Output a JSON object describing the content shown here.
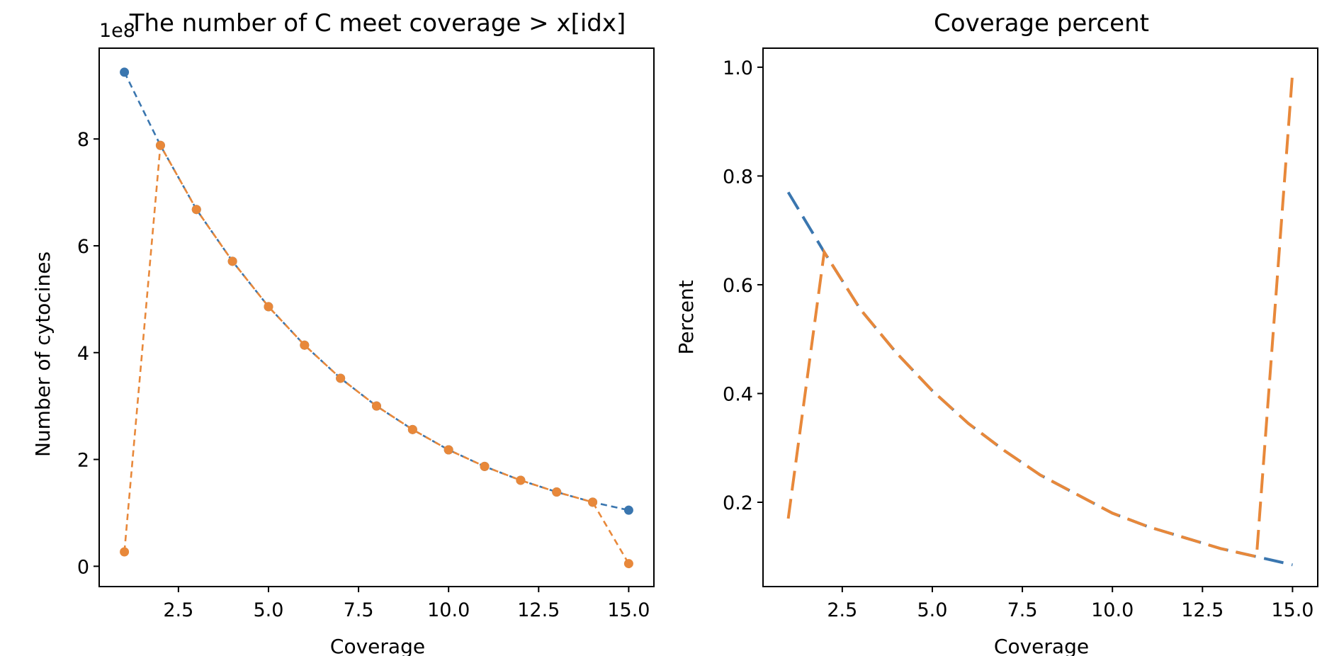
{
  "chart_data": [
    {
      "type": "line",
      "title": "The number of C meet coverage > x[idx]",
      "xlabel": "Coverage",
      "ylabel": "Number of cytocines",
      "offset_text": "1e8",
      "xlim": [
        0.3,
        15.7
      ],
      "ylim": [
        -0.38,
        9.7
      ],
      "xticks": [
        2.5,
        5.0,
        7.5,
        10.0,
        12.5,
        15.0
      ],
      "xtick_labels": [
        "2.5",
        "5.0",
        "7.5",
        "10.0",
        "12.5",
        "15.0"
      ],
      "yticks": [
        0,
        2,
        4,
        6,
        8
      ],
      "ytick_labels": [
        "0",
        "2",
        "4",
        "6",
        "8"
      ],
      "x": [
        1,
        2,
        3,
        4,
        5,
        6,
        7,
        8,
        9,
        10,
        11,
        12,
        13,
        14,
        15
      ],
      "series": [
        {
          "color": "#3a76af",
          "style": "dashed",
          "markers": true,
          "values": [
            9.25,
            7.88,
            6.68,
            5.71,
            4.86,
            4.14,
            3.52,
            3.0,
            2.56,
            2.18,
            1.87,
            1.61,
            1.39,
            1.2,
            1.05
          ]
        },
        {
          "color": "#e8883a",
          "style": "dashed",
          "markers": true,
          "values": [
            0.27,
            7.88,
            6.68,
            5.71,
            4.86,
            4.14,
            3.52,
            3.0,
            2.56,
            2.18,
            1.87,
            1.61,
            1.39,
            1.2,
            0.05
          ]
        }
      ]
    },
    {
      "type": "line",
      "title": "Coverage percent",
      "xlabel": "Coverage",
      "ylabel": "Percent",
      "xlim": [
        0.3,
        15.7
      ],
      "ylim": [
        0.045,
        1.035
      ],
      "xticks": [
        2.5,
        5.0,
        7.5,
        10.0,
        12.5,
        15.0
      ],
      "xtick_labels": [
        "2.5",
        "5.0",
        "7.5",
        "10.0",
        "12.5",
        "15.0"
      ],
      "yticks": [
        0.2,
        0.4,
        0.6,
        0.8,
        1.0
      ],
      "ytick_labels": [
        "0.2",
        "0.4",
        "0.6",
        "0.8",
        "1.0"
      ],
      "x": [
        1,
        2,
        3,
        4,
        5,
        6,
        7,
        8,
        9,
        10,
        11,
        12,
        13,
        14,
        15
      ],
      "series": [
        {
          "color": "#3a76af",
          "style": "long-dashed",
          "markers": false,
          "values": [
            0.77,
            0.66,
            0.555,
            0.475,
            0.405,
            0.345,
            0.295,
            0.25,
            0.215,
            0.18,
            0.155,
            0.135,
            0.115,
            0.1,
            0.085
          ]
        },
        {
          "color": "#e8883a",
          "style": "long-dashed",
          "markers": false,
          "values": [
            0.17,
            0.66,
            0.555,
            0.475,
            0.405,
            0.345,
            0.295,
            0.25,
            0.215,
            0.18,
            0.155,
            0.135,
            0.115,
            0.1,
            0.99
          ]
        }
      ]
    }
  ]
}
